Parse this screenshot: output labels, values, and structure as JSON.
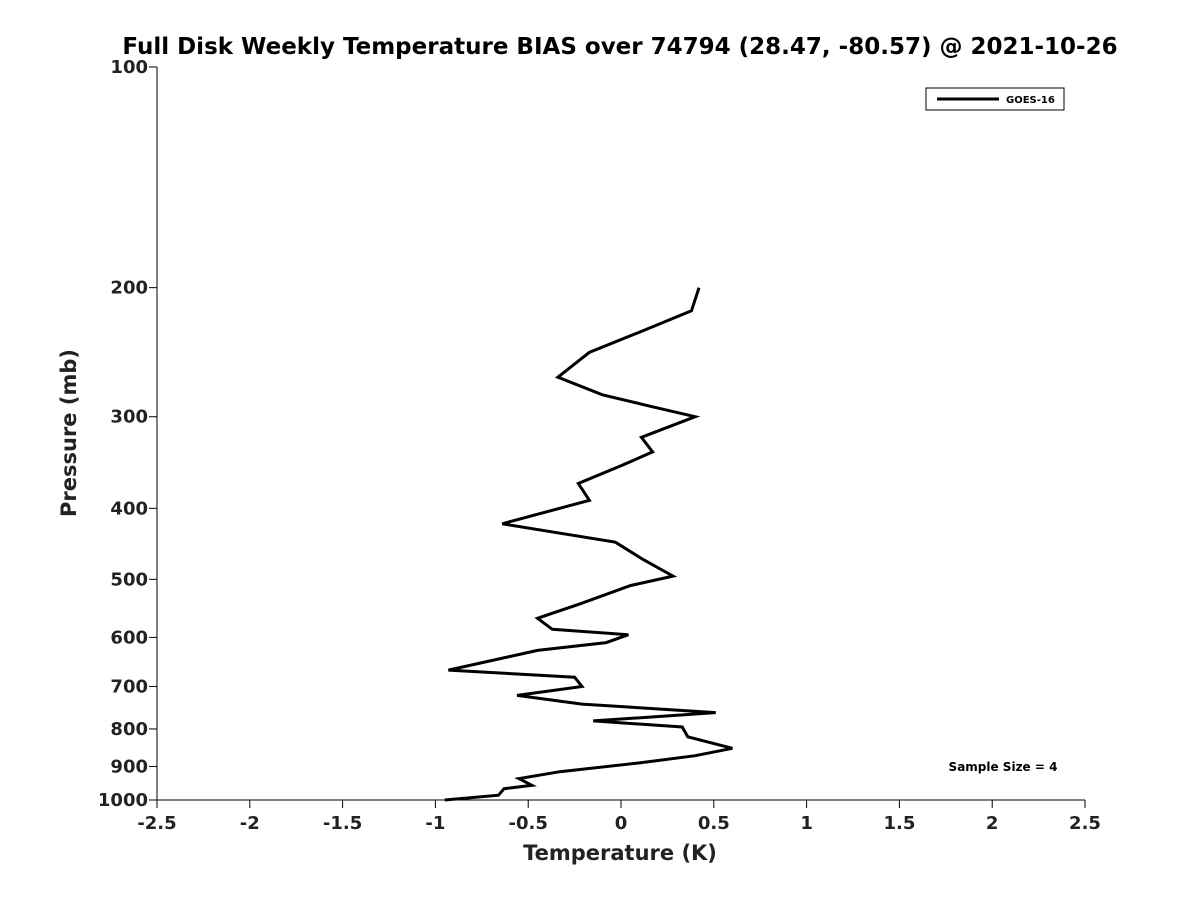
{
  "chart_data": {
    "type": "line",
    "title": "Full Disk Weekly Temperature BIAS over 74794 (28.47, -80.57) @ 2021-10-26",
    "xlabel": "Temperature (K)",
    "ylabel": "Pressure (mb)",
    "xlim": [
      -2.5,
      2.5
    ],
    "ylim": [
      1000,
      100
    ],
    "yscale": "log",
    "x_ticks": [
      -2.5,
      -2,
      -1.5,
      -1,
      -0.5,
      0,
      0.5,
      1,
      1.5,
      2,
      2.5
    ],
    "x_tick_labels": [
      "-2.5",
      "-2",
      "-1.5",
      "-1",
      "-0.5",
      "0",
      "0.5",
      "1",
      "1.5",
      "2",
      "2.5"
    ],
    "y_ticks": [
      100,
      200,
      300,
      400,
      500,
      600,
      700,
      800,
      900,
      1000
    ],
    "y_tick_labels": [
      "100",
      "200",
      "300",
      "400",
      "500",
      "600",
      "700",
      "800",
      "900",
      "1000"
    ],
    "grid": false,
    "legend_position": "top-right",
    "annotation": "Sample Size = 4",
    "series": [
      {
        "name": "GOES-16",
        "color": "#000000",
        "points": [
          {
            "x": 0.42,
            "y": 200
          },
          {
            "x": 0.38,
            "y": 215
          },
          {
            "x": 0.1,
            "y": 230
          },
          {
            "x": -0.17,
            "y": 245
          },
          {
            "x": -0.34,
            "y": 265
          },
          {
            "x": -0.1,
            "y": 280
          },
          {
            "x": 0.15,
            "y": 290
          },
          {
            "x": 0.4,
            "y": 300
          },
          {
            "x": 0.11,
            "y": 320
          },
          {
            "x": 0.17,
            "y": 335
          },
          {
            "x": 0.0,
            "y": 350
          },
          {
            "x": -0.23,
            "y": 370
          },
          {
            "x": -0.17,
            "y": 390
          },
          {
            "x": -0.64,
            "y": 420
          },
          {
            "x": -0.03,
            "y": 445
          },
          {
            "x": 0.12,
            "y": 470
          },
          {
            "x": 0.28,
            "y": 495
          },
          {
            "x": 0.05,
            "y": 510
          },
          {
            "x": -0.22,
            "y": 540
          },
          {
            "x": -0.45,
            "y": 565
          },
          {
            "x": -0.37,
            "y": 585
          },
          {
            "x": 0.04,
            "y": 595
          },
          {
            "x": -0.08,
            "y": 610
          },
          {
            "x": -0.45,
            "y": 625
          },
          {
            "x": -0.93,
            "y": 665
          },
          {
            "x": -0.25,
            "y": 680
          },
          {
            "x": -0.21,
            "y": 700
          },
          {
            "x": -0.56,
            "y": 720
          },
          {
            "x": -0.21,
            "y": 740
          },
          {
            "x": 0.51,
            "y": 760
          },
          {
            "x": -0.15,
            "y": 780
          },
          {
            "x": 0.33,
            "y": 795
          },
          {
            "x": 0.36,
            "y": 820
          },
          {
            "x": 0.6,
            "y": 850
          },
          {
            "x": 0.4,
            "y": 870
          },
          {
            "x": 0.1,
            "y": 890
          },
          {
            "x": -0.33,
            "y": 915
          },
          {
            "x": -0.55,
            "y": 935
          },
          {
            "x": -0.48,
            "y": 955
          },
          {
            "x": -0.63,
            "y": 965
          },
          {
            "x": -0.66,
            "y": 985
          },
          {
            "x": -0.95,
            "y": 1000
          }
        ]
      }
    ]
  }
}
